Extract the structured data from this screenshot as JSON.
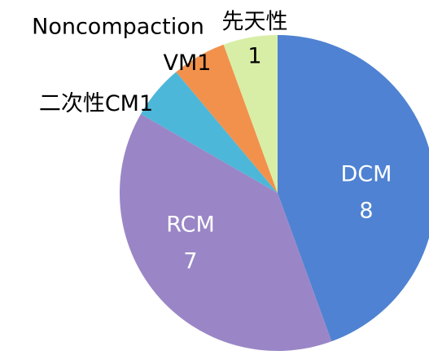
{
  "chart_data": {
    "type": "pie",
    "categories": [
      "DCM",
      "RCM",
      "二次性CM",
      "Noncompaction VM",
      "先天性"
    ],
    "values": [
      8,
      7,
      1,
      1,
      1
    ],
    "colors": [
      "#4f82d2",
      "#9a86c6",
      "#4db7d9",
      "#f2914c",
      "#d8eea6"
    ]
  }
}
